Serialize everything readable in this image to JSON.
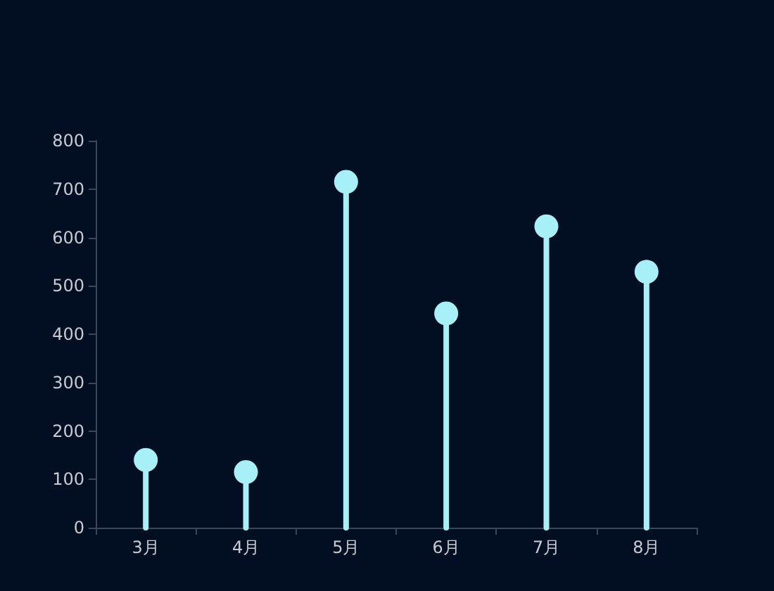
{
  "chart_data": {
    "type": "lollipop",
    "categories": [
      "3月",
      "4月",
      "5月",
      "6月",
      "7月",
      "8月"
    ],
    "values": [
      140,
      115,
      715,
      443,
      623,
      529
    ],
    "color": "#a8f0f8",
    "ylim": [
      0,
      800
    ],
    "yticks": [
      0,
      100,
      200,
      300,
      400,
      500,
      600,
      700,
      800
    ],
    "marker": "circle"
  }
}
